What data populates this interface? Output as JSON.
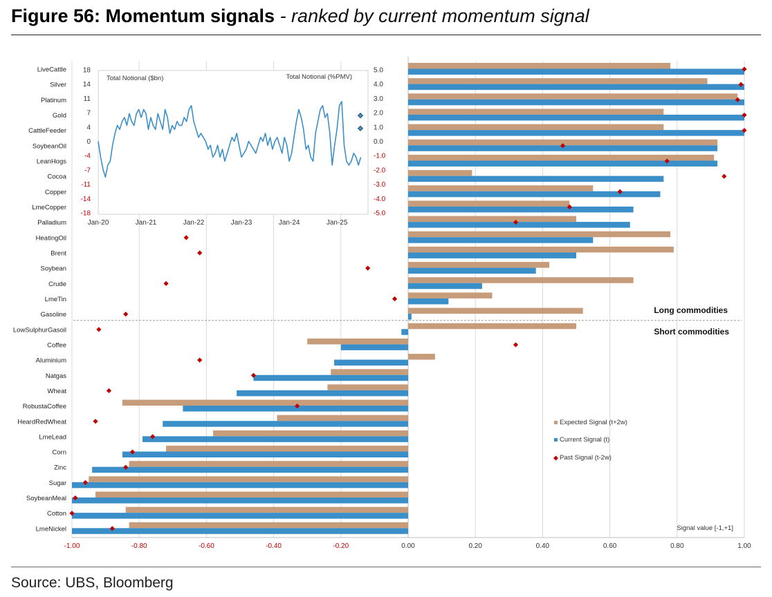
{
  "figure": {
    "title_main": "Figure 56: Momentum signals",
    "title_sub": " - ranked by current momentum signal",
    "source": "Source: UBS, Bloomberg"
  },
  "annotations": {
    "long": "Long commodities",
    "short": "Short commodities",
    "axis_note": "Signal value [-1,+1]"
  },
  "colors": {
    "expected": "#c69c7b",
    "current": "#3a8fc9",
    "past": "#c00000",
    "inset_line": "#3a8fc9"
  },
  "chart_data": [
    {
      "type": "bar",
      "orientation": "horizontal",
      "categories": [
        "LiveCattle",
        "Silver",
        "Platinum",
        "Gold",
        "CattleFeeder",
        "SoybeanOil",
        "LeanHogs",
        "Cocoa",
        "Copper",
        "LmeCopper",
        "Palladium",
        "HeatingOil",
        "Brent",
        "Soybean",
        "Crude",
        "LmeTin",
        "Gasoline",
        "LowSulphurGasoil",
        "Coffee",
        "Aluminium",
        "Natgas",
        "Wheat",
        "RobustaCoffee",
        "HeardRedWheat",
        "LmeLead",
        "Corn",
        "Zinc",
        "Sugar",
        "SoybeanMeal",
        "Cotton",
        "LmeNickel"
      ],
      "series": [
        {
          "name": "Expected Signal (t+2w)",
          "values": [
            0.78,
            0.89,
            0.98,
            0.76,
            0.76,
            0.92,
            0.91,
            0.19,
            0.55,
            0.48,
            0.5,
            0.78,
            0.79,
            0.42,
            0.67,
            0.25,
            0.52,
            0.5,
            -0.3,
            0.08,
            -0.23,
            -0.24,
            -0.85,
            -0.39,
            -0.58,
            -0.72,
            -0.83,
            -0.95,
            -0.93,
            -0.84,
            -0.83
          ]
        },
        {
          "name": "Current Signal (t)",
          "values": [
            1.0,
            1.0,
            1.0,
            1.0,
            1.0,
            0.92,
            0.92,
            0.76,
            0.75,
            0.67,
            0.66,
            0.55,
            0.5,
            0.38,
            0.22,
            0.12,
            0.01,
            -0.02,
            -0.2,
            -0.22,
            -0.46,
            -0.51,
            -0.67,
            -0.73,
            -0.79,
            -0.85,
            -0.94,
            -1.0,
            -1.0,
            -1.0,
            -1.0
          ]
        },
        {
          "name": "Past Signal (t-2w)",
          "values": [
            1.0,
            0.99,
            0.98,
            1.0,
            1.0,
            0.46,
            0.77,
            0.94,
            0.63,
            0.48,
            0.32,
            -0.66,
            -0.62,
            -0.12,
            -0.72,
            -0.04,
            -0.84,
            -0.92,
            0.32,
            -0.62,
            -0.46,
            -0.89,
            -0.33,
            -0.93,
            -0.76,
            -0.82,
            -0.84,
            -0.96,
            -0.99,
            -1.0,
            -0.88
          ]
        }
      ],
      "xticks": [
        "-1.00",
        "-0.80",
        "-0.60",
        "-0.40",
        "-0.20",
        "0.00",
        "0.20",
        "0.40",
        "0.60",
        "0.80",
        "1.00"
      ],
      "xlim": [
        -1,
        1
      ],
      "grid": true,
      "legend": "right"
    },
    {
      "type": "line",
      "title_left": "Total Notional ($bn)",
      "title_right": "Total Notional (%PMV)",
      "x_ticks": [
        "Jan-20",
        "Jan-21",
        "Jan-22",
        "Jan-23",
        "Jan-24",
        "Jan-25"
      ],
      "y_left_ticks": [
        "18",
        "14",
        "11",
        "7",
        "4",
        "0",
        "-4",
        "-7",
        "-11",
        "-14",
        "-18"
      ],
      "y_right_ticks": [
        "5.0",
        "4.0",
        "3.0",
        "2.0",
        "1.0",
        "0.0",
        "-1.0",
        "-2.0",
        "-3.0",
        "-4.0",
        "-5.0"
      ],
      "ylim": [
        -18,
        18
      ],
      "x_range_years": [
        2020.0,
        2025.65
      ],
      "series": [
        {
          "x": [
            2020.0,
            2020.05,
            2020.1,
            2020.15,
            2020.2,
            2020.25,
            2020.3,
            2020.35,
            2020.4,
            2020.45,
            2020.5,
            2020.55,
            2020.6,
            2020.65,
            2020.7,
            2020.75,
            2020.8,
            2020.85,
            2020.9,
            2020.95,
            2021.0,
            2021.05,
            2021.1,
            2021.15,
            2021.2,
            2021.25,
            2021.3,
            2021.35,
            2021.4,
            2021.45,
            2021.5,
            2021.55,
            2021.6,
            2021.65,
            2021.7,
            2021.75,
            2021.8,
            2021.85,
            2021.9,
            2021.95,
            2022.0,
            2022.05,
            2022.1,
            2022.15,
            2022.2,
            2022.25,
            2022.3,
            2022.35,
            2022.4,
            2022.45,
            2022.5,
            2022.55,
            2022.6,
            2022.65,
            2022.7,
            2022.75,
            2022.8,
            2022.85,
            2022.9,
            2022.95,
            2023.0,
            2023.05,
            2023.1,
            2023.15,
            2023.2,
            2023.25,
            2023.3,
            2023.35,
            2023.4,
            2023.45,
            2023.5,
            2023.55,
            2023.6,
            2023.65,
            2023.7,
            2023.75,
            2023.8,
            2023.85,
            2023.9,
            2023.95,
            2024.0,
            2024.05,
            2024.1,
            2024.15,
            2024.2,
            2024.25,
            2024.3,
            2024.35,
            2024.4,
            2024.45,
            2024.5,
            2024.55,
            2024.6,
            2024.65,
            2024.7,
            2024.75,
            2024.8,
            2024.85,
            2024.9,
            2024.95,
            2025.0,
            2025.05,
            2025.1,
            2025.15,
            2025.2,
            2025.25,
            2025.3,
            2025.35,
            2025.4,
            2025.45,
            2025.5
          ],
          "values": [
            0,
            -4,
            -7,
            -9,
            -6,
            -5,
            -1,
            2,
            4,
            3,
            5,
            6,
            4,
            7,
            5,
            4,
            7,
            8,
            6,
            8,
            7,
            3,
            6,
            4,
            3,
            7,
            5,
            3,
            8,
            6,
            2,
            4,
            3,
            5,
            4,
            4,
            6,
            5,
            8,
            9,
            5,
            3,
            1,
            2,
            1,
            0,
            -2,
            -1,
            -4,
            -3,
            -1,
            -4,
            -2,
            -5,
            -3,
            -1,
            1,
            0,
            2,
            -1,
            -4,
            -3,
            -2,
            0,
            -1,
            -2,
            -3,
            -1,
            1,
            0,
            2,
            -1,
            1,
            -2,
            0,
            1,
            -1,
            -3,
            1,
            -1,
            -5,
            -3,
            1,
            5,
            8,
            6,
            3,
            -2,
            -1,
            -4,
            -5,
            2,
            5,
            8,
            9,
            6,
            7,
            2,
            -6,
            -1,
            3,
            9,
            10,
            -1,
            -5,
            -6,
            -5,
            -3,
            -4,
            -6,
            -4
          ]
        }
      ],
      "right_axis_markers": [
        1.8,
        0.9
      ]
    }
  ]
}
